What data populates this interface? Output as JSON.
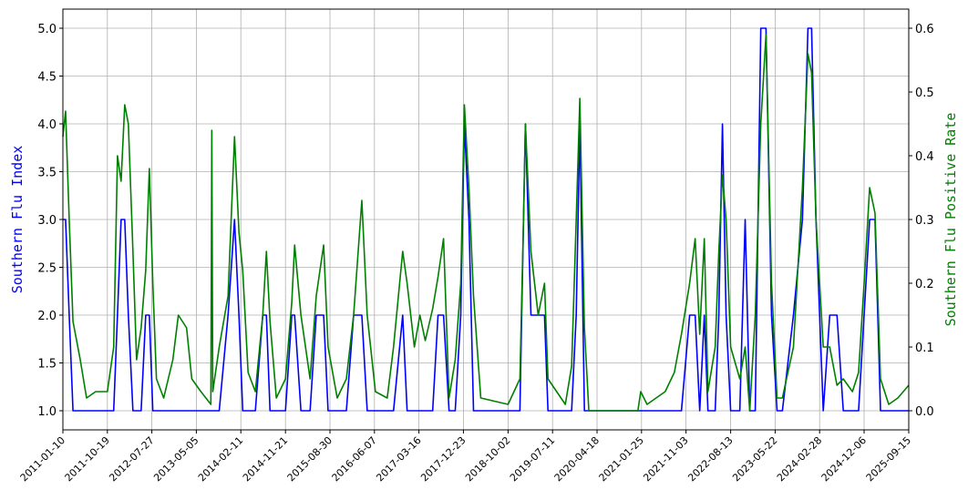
{
  "chart_data": {
    "type": "line",
    "x": [
      "2011-01-10",
      "2011-01-27",
      "2011-02-19",
      "2011-03-15",
      "2011-04-30",
      "2011-06-09",
      "2011-08-06",
      "2011-10-19",
      "2011-11-28",
      "2011-12-22",
      "2012-01-14",
      "2012-02-06",
      "2012-02-29",
      "2012-03-29",
      "2012-04-21",
      "2012-05-20",
      "2012-06-18",
      "2012-07-11",
      "2012-08-02",
      "2012-08-25",
      "2012-10-10",
      "2012-12-07",
      "2013-01-11",
      "2013-03-04",
      "2013-04-06",
      "2013-06-03",
      "2013-08-05",
      "2013-08-11",
      "2013-08-17",
      "2013-09-27",
      "2013-11-22",
      "2014-01-02",
      "2014-01-30",
      "2014-02-23",
      "2014-03-29",
      "2014-05-14",
      "2014-06-30",
      "2014-07-23",
      "2014-08-15",
      "2014-09-24",
      "2014-11-21",
      "2014-12-31",
      "2015-01-18",
      "2015-02-27",
      "2015-04-26",
      "2015-06-04",
      "2015-07-21",
      "2015-08-18",
      "2015-10-15",
      "2015-12-12",
      "2016-01-27",
      "2016-03-19",
      "2016-04-22",
      "2016-06-13",
      "2016-08-27",
      "2016-10-06",
      "2016-12-03",
      "2016-12-31",
      "2017-02-15",
      "2017-03-22",
      "2017-04-25",
      "2017-06-11",
      "2017-07-15",
      "2017-08-19",
      "2017-09-23",
      "2017-11-01",
      "2017-12-06",
      "2017-12-29",
      "2018-01-27",
      "2018-02-25",
      "2018-04-12",
      "2018-10-02",
      "2018-12-16",
      "2019-01-08",
      "2019-01-20",
      "2019-02-24",
      "2019-04-11",
      "2019-05-21",
      "2019-06-12",
      "2019-09-30",
      "2019-11-09",
      "2019-12-08",
      "2019-12-31",
      "2020-01-29",
      "2020-02-26",
      "2021-01-02",
      "2021-01-20",
      "2021-03-01",
      "2021-06-24",
      "2021-08-21",
      "2021-10-05",
      "2021-11-26",
      "2021-12-31",
      "2022-01-29",
      "2022-02-27",
      "2022-03-22",
      "2022-05-07",
      "2022-05-30",
      "2022-06-22",
      "2022-07-15",
      "2022-08-13",
      "2022-10-10",
      "2022-11-13",
      "2022-12-12",
      "2023-01-16",
      "2023-02-20",
      "2023-03-25",
      "2023-04-29",
      "2023-06-03",
      "2023-07-07",
      "2023-09-15",
      "2023-11-11",
      "2023-12-16",
      "2024-01-08",
      "2024-02-05",
      "2024-03-22",
      "2024-05-02",
      "2024-06-17",
      "2024-07-27",
      "2024-09-23",
      "2024-11-01",
      "2024-12-06",
      "2025-01-10",
      "2025-02-13",
      "2025-03-20",
      "2025-05-11",
      "2025-07-08",
      "2025-09-15"
    ],
    "series": [
      {
        "name": "Southern Flu Index",
        "color": "#0000ff",
        "axis": "y",
        "values": [
          3,
          3,
          2,
          1,
          1,
          1,
          1,
          1,
          1,
          2,
          3,
          3,
          2,
          1,
          1,
          1,
          2,
          2,
          1,
          1,
          1,
          1,
          1,
          1,
          1,
          1,
          1,
          1,
          1,
          1,
          2,
          3,
          2,
          1,
          1,
          1,
          2,
          2,
          1,
          1,
          1,
          2,
          2,
          1,
          1,
          2,
          2,
          1,
          1,
          1,
          2,
          2,
          1,
          1,
          1,
          1,
          2,
          1,
          1,
          1,
          1,
          1,
          2,
          2,
          1,
          1,
          2,
          4,
          3,
          1,
          1,
          1,
          1,
          3,
          4,
          2,
          2,
          2,
          1,
          1,
          1,
          2,
          4,
          1,
          1,
          1,
          1,
          1,
          1,
          1,
          1,
          2,
          2,
          1,
          2,
          1,
          1,
          2,
          4,
          2,
          1,
          1,
          3,
          1,
          1,
          5,
          5,
          2,
          1,
          1,
          2,
          3,
          5,
          5,
          3,
          1,
          2,
          2,
          1,
          1,
          1,
          2,
          3,
          3,
          1,
          1,
          1,
          1
        ]
      },
      {
        "name": "Southern Flu Positive Rate",
        "color": "#008000",
        "axis": "y2",
        "values": [
          0.43,
          0.47,
          0.3,
          0.14,
          0.08,
          0.02,
          0.03,
          0.03,
          0.1,
          0.4,
          0.36,
          0.48,
          0.45,
          0.25,
          0.08,
          0.13,
          0.22,
          0.38,
          0.2,
          0.05,
          0.02,
          0.08,
          0.15,
          0.13,
          0.05,
          0.03,
          0.01,
          0.44,
          0.03,
          0.1,
          0.18,
          0.43,
          0.28,
          0.22,
          0.06,
          0.03,
          0.15,
          0.25,
          0.14,
          0.02,
          0.05,
          0.17,
          0.26,
          0.15,
          0.05,
          0.18,
          0.26,
          0.1,
          0.02,
          0.05,
          0.15,
          0.33,
          0.15,
          0.03,
          0.02,
          0.1,
          0.25,
          0.2,
          0.1,
          0.15,
          0.11,
          0.16,
          0.21,
          0.27,
          0.02,
          0.08,
          0.2,
          0.48,
          0.35,
          0.18,
          0.02,
          0.01,
          0.05,
          0.3,
          0.45,
          0.25,
          0.15,
          0.2,
          0.05,
          0.01,
          0.07,
          0.3,
          0.49,
          0.13,
          0,
          0,
          0.03,
          0.01,
          0.03,
          0.06,
          0.12,
          0.2,
          0.27,
          0.12,
          0.27,
          0.03,
          0.1,
          0.25,
          0.37,
          0.3,
          0.1,
          0.05,
          0.1,
          0,
          0.15,
          0.45,
          0.59,
          0.2,
          0.02,
          0.02,
          0.1,
          0.35,
          0.56,
          0.53,
          0.3,
          0.1,
          0.1,
          0.04,
          0.05,
          0.03,
          0.06,
          0.2,
          0.35,
          0.31,
          0.05,
          0.01,
          0.02,
          0.04
        ]
      }
    ],
    "ylabel": "Southern Flu Index",
    "y2label": "Southern Flu Positive Rate",
    "xlim": [
      "2011-01-10",
      "2025-09-15"
    ],
    "xticks": [
      "2011-01-10",
      "2011-10-19",
      "2012-07-27",
      "2013-05-05",
      "2014-02-11",
      "2014-11-21",
      "2015-08-30",
      "2016-06-07",
      "2017-03-16",
      "2017-12-23",
      "2018-10-02",
      "2019-07-11",
      "2020-04-18",
      "2021-01-25",
      "2021-11-03",
      "2022-08-13",
      "2023-05-22",
      "2024-02-28",
      "2024-12-06",
      "2025-09-15"
    ],
    "ylim": [
      0.8,
      5.2
    ],
    "yticks": [
      {
        "value": 1,
        "label": "1.0"
      },
      1.5,
      {
        "value": 2,
        "label": "2.0"
      },
      2.5,
      {
        "value": 3,
        "label": "3.0"
      },
      3.5,
      {
        "value": 4,
        "label": "4.0"
      },
      4.5,
      {
        "value": 5,
        "label": "5.0"
      }
    ],
    "y2lim": [
      -0.03,
      0.63
    ],
    "y2ticks": [
      {
        "value": 0,
        "label": "0.0"
      },
      0.1,
      0.2,
      0.3,
      0.4,
      0.5,
      0.6
    ],
    "grid": true
  }
}
